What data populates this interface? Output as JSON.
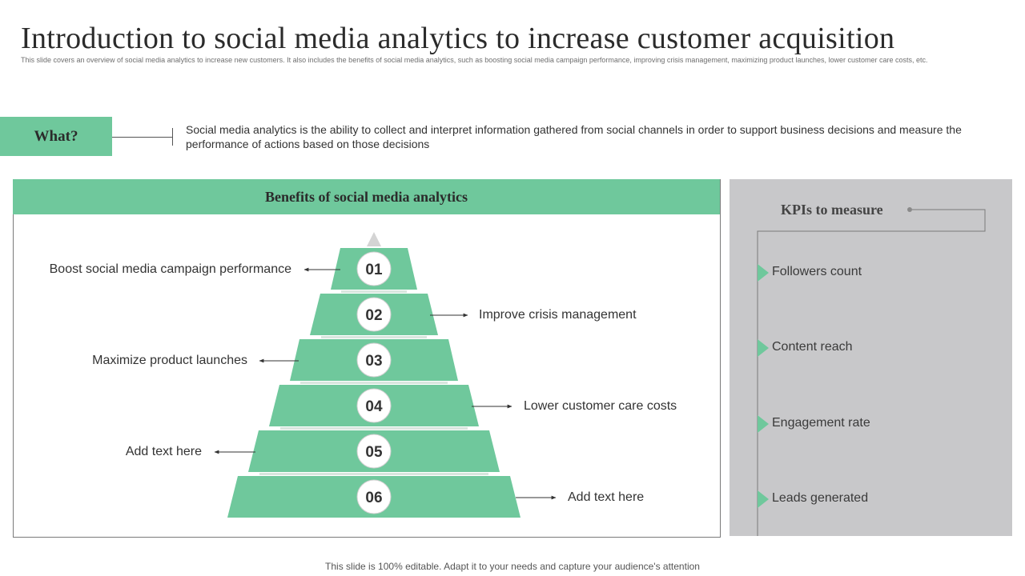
{
  "slide": {
    "title": "Introduction to social media analytics to increase customer acquisition",
    "subtitle": "This slide covers an overview of social media analytics to increase new customers. It also includes the benefits of social media  analytics, such as boosting social media  campaign  performance, improving crisis management,  maximizing  product launches, lower customer care costs, etc.",
    "footer": "This slide is 100% editable. Adapt it to your needs and capture your audience's attention"
  },
  "what": {
    "label": "What?",
    "description": "Social media analytics is the ability to collect and interpret information gathered from social channels in order to support business decisions and measure the performance of actions based on those decisions"
  },
  "benefits": {
    "header": "Benefits of social media analytics",
    "items": [
      {
        "number": "01",
        "label": "Boost social media campaign performance"
      },
      {
        "number": "02",
        "label": "Improve  crisis management"
      },
      {
        "number": "03",
        "label": "Maximize product launches"
      },
      {
        "number": "04",
        "label": "Lower customer care costs"
      },
      {
        "number": "05",
        "label": "Add text here"
      },
      {
        "number": "06",
        "label": "Add text here"
      }
    ]
  },
  "kpis": {
    "title": "KPIs to measure",
    "items": [
      "Followers count",
      "Content reach",
      "Engagement rate",
      "Leads generated"
    ]
  },
  "colors": {
    "accent_green": "#6fc89c",
    "kpi_panel_gray": "#c8c8ca",
    "pyramid_tip_gray": "#d4d4d4"
  }
}
